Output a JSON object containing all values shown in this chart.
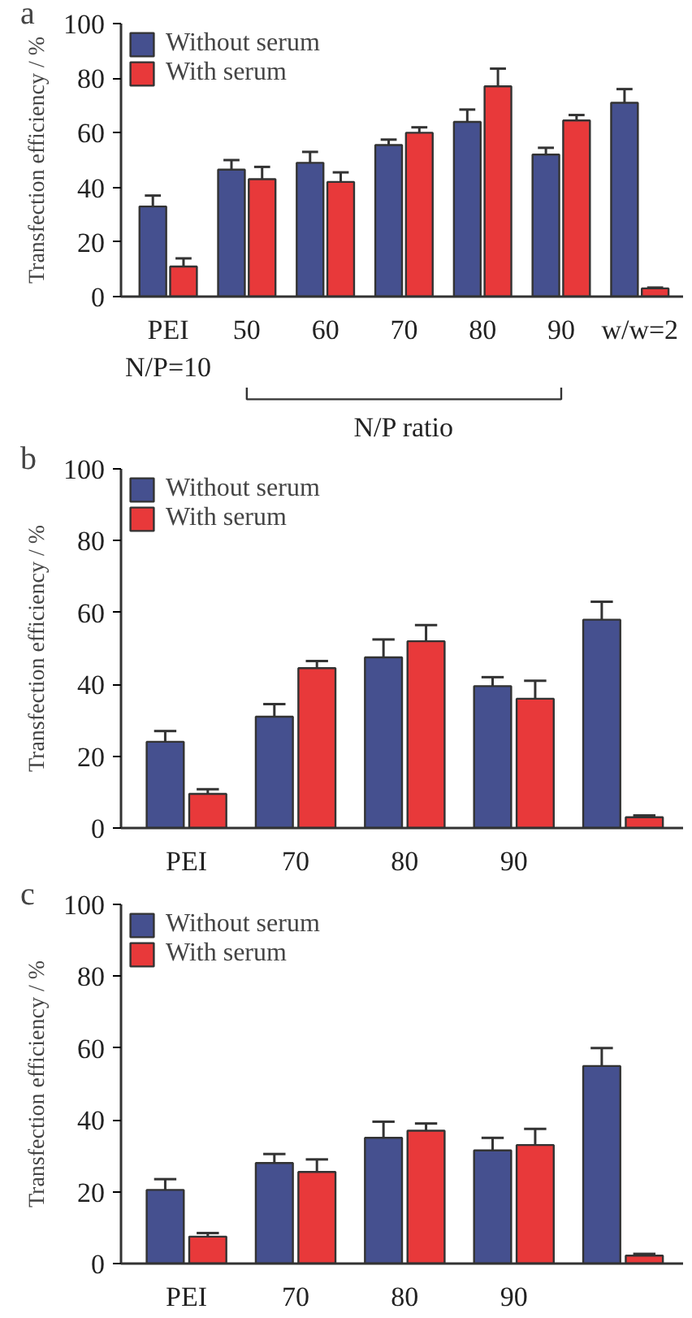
{
  "chart_data": [
    {
      "type": "bar",
      "title": "a",
      "ylabel": "Transfection efficiency / %",
      "categories": [
        "PEI\nN/P=10",
        "50",
        "60",
        "70",
        "80",
        "90",
        "w/w=2"
      ],
      "annotations": [
        "N/P ratio"
      ],
      "ylim": [
        0,
        100
      ],
      "yticks": [
        0,
        20,
        40,
        60,
        80,
        100
      ],
      "legend": "top left",
      "series": [
        {
          "name": "Without serum",
          "color": "#45508f",
          "values": [
            33,
            46.5,
            49,
            55.5,
            64,
            52,
            71
          ],
          "errors": [
            4,
            3.5,
            4,
            2,
            4.5,
            2.5,
            5
          ]
        },
        {
          "name": "With serum",
          "color": "#e8393a",
          "values": [
            11,
            43,
            42,
            60,
            77,
            64.5,
            3
          ],
          "errors": [
            3,
            4.5,
            3.5,
            2,
            6.5,
            2,
            0.3
          ]
        }
      ]
    },
    {
      "type": "bar",
      "title": "b",
      "ylabel": "Transfection efficiency / %",
      "categories": [
        "PEI",
        "70",
        "80",
        "90",
        null
      ],
      "ylim": [
        0,
        100
      ],
      "yticks": [
        0,
        20,
        40,
        60,
        80,
        100
      ],
      "legend": "top left",
      "series": [
        {
          "name": "Without serum",
          "color": "#45508f",
          "values": [
            24,
            31,
            47.5,
            39.5,
            58
          ],
          "errors": [
            3,
            3.5,
            5,
            2.5,
            5
          ]
        },
        {
          "name": "With serum",
          "color": "#e8393a",
          "values": [
            9.5,
            44.5,
            52,
            36,
            3
          ],
          "errors": [
            1.3,
            2,
            4.5,
            5,
            0.5
          ]
        }
      ]
    },
    {
      "type": "bar",
      "title": "c",
      "ylabel": "Transfection efficiency / %",
      "categories": [
        "PEI",
        "70",
        "80",
        "90",
        null
      ],
      "ylim": [
        0,
        100
      ],
      "yticks": [
        0,
        20,
        40,
        60,
        80,
        100
      ],
      "legend": "top left",
      "series": [
        {
          "name": "Without serum",
          "color": "#45508f",
          "values": [
            20.5,
            28,
            35,
            31.5,
            55
          ],
          "errors": [
            3,
            2.5,
            4.5,
            3.5,
            5
          ]
        },
        {
          "name": "With serum",
          "color": "#e8393a",
          "values": [
            7.5,
            25.5,
            37,
            33,
            2.2
          ],
          "errors": [
            1,
            3.5,
            2,
            4.5,
            0.5
          ]
        }
      ]
    }
  ]
}
